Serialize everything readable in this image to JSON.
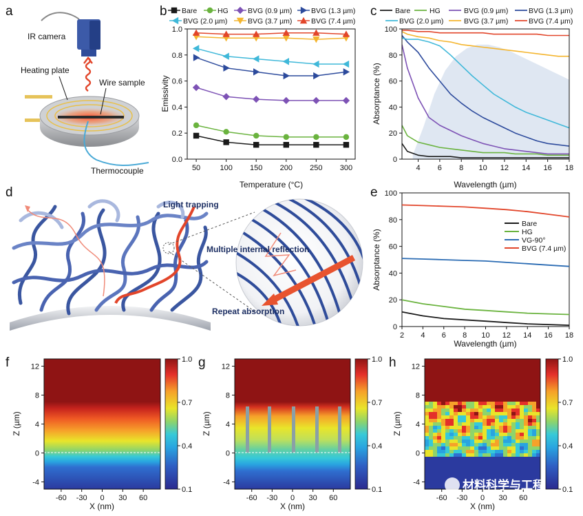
{
  "panels": {
    "a": {
      "letter": "a",
      "ir_camera": "IR camera",
      "heating_plate": "Heating plate",
      "wire_sample": "Wire sample",
      "thermocouple": "Thermocouple"
    },
    "b": {
      "letter": "b"
    },
    "c": {
      "letter": "c"
    },
    "d": {
      "letter": "d",
      "light_trapping": "Light trapping",
      "multiple_internal_reflection": "Multiple internal reflection",
      "repeat_absorption": "Repeat absorption"
    },
    "e": {
      "letter": "e"
    },
    "f": {
      "letter": "f"
    },
    "g": {
      "letter": "g"
    },
    "h": {
      "letter": "h"
    }
  },
  "watermark": "材料科学与工程",
  "colors": {
    "bare": "#1a1a1a",
    "hg": "#6ab33e",
    "bvg09": "#7d52b5",
    "bvg13": "#2c4a9c",
    "bvg20": "#3fb8d9",
    "bvg37": "#f4b52e",
    "bvg74": "#e2452a",
    "vg90": "#2a6bb3"
  },
  "chart_data": [
    {
      "id": "b",
      "type": "line",
      "xlabel": "Temperature (°C)",
      "ylabel": "Emissivity",
      "xlim": [
        35,
        315
      ],
      "ylim": [
        0.0,
        1.0
      ],
      "xticks": [
        50,
        100,
        150,
        200,
        250,
        300
      ],
      "yticks": [
        0.0,
        0.2,
        0.4,
        0.6,
        0.8,
        1.0
      ],
      "ytick_labels": [
        "0.0",
        "0.2",
        "0.4",
        "0.6",
        "0.8",
        "1.0"
      ],
      "x": [
        50,
        100,
        150,
        200,
        250,
        300
      ],
      "series": [
        {
          "name": "Bare",
          "color": "#1a1a1a",
          "marker": "square",
          "values": [
            0.18,
            0.13,
            0.11,
            0.11,
            0.11,
            0.11
          ]
        },
        {
          "name": "HG",
          "color": "#6ab33e",
          "marker": "circle",
          "values": [
            0.26,
            0.21,
            0.18,
            0.17,
            0.17,
            0.17
          ]
        },
        {
          "name": "BVG (0.9 µm)",
          "color": "#7d52b5",
          "marker": "diamond",
          "values": [
            0.55,
            0.48,
            0.46,
            0.45,
            0.45,
            0.45
          ]
        },
        {
          "name": "BVG (1.3 µm)",
          "color": "#2c4a9c",
          "marker": "tri-right",
          "values": [
            0.78,
            0.7,
            0.67,
            0.64,
            0.64,
            0.67
          ]
        },
        {
          "name": "BVG (2.0 µm)",
          "color": "#3fb8d9",
          "marker": "tri-left",
          "values": [
            0.85,
            0.79,
            0.77,
            0.75,
            0.73,
            0.73
          ]
        },
        {
          "name": "BVG (3.7 µm)",
          "color": "#f4b52e",
          "marker": "tri-down",
          "values": [
            0.94,
            0.93,
            0.93,
            0.93,
            0.92,
            0.93
          ]
        },
        {
          "name": "BVG (7.4 µm)",
          "color": "#e2452a",
          "marker": "tri-up",
          "values": [
            0.97,
            0.96,
            0.96,
            0.97,
            0.97,
            0.96
          ]
        }
      ]
    },
    {
      "id": "c",
      "type": "line",
      "xlabel": "Wavelength (µm)",
      "ylabel": "Absorptance (%)",
      "xlim": [
        2.5,
        18
      ],
      "ylim": [
        0,
        100
      ],
      "xticks": [
        4,
        6,
        8,
        10,
        12,
        14,
        16,
        18
      ],
      "yticks": [
        0,
        20,
        40,
        60,
        80,
        100
      ],
      "background": {
        "name": "blackbody (shaded)",
        "color": "#dbe4f1",
        "x": [
          3.5,
          4.5,
          5.5,
          6.5,
          7.5,
          8.5,
          9.5,
          10.5,
          11.5,
          12.5,
          13.5,
          14.5,
          15.5,
          16.5,
          17.5,
          18
        ],
        "values": [
          3,
          25,
          50,
          68,
          79,
          85,
          88,
          88,
          86,
          83,
          79,
          75,
          71,
          67,
          63,
          61
        ]
      },
      "x": [
        2.5,
        3,
        4,
        5,
        6,
        7,
        8,
        9,
        10,
        11,
        12,
        13,
        14,
        15,
        16,
        17,
        18
      ],
      "series": [
        {
          "name": "Bare",
          "color": "#1a1a1a",
          "values": [
            12,
            6,
            3,
            2,
            2,
            2,
            1,
            1,
            1,
            1,
            1,
            1,
            1,
            1,
            1,
            1,
            1
          ]
        },
        {
          "name": "HG",
          "color": "#6ab33e",
          "values": [
            26,
            18,
            13,
            11,
            9,
            8,
            7,
            6,
            5,
            5,
            5,
            4,
            4,
            4,
            3,
            3,
            3
          ]
        },
        {
          "name": "BVG (0.9 µm)",
          "color": "#7d52b5",
          "values": [
            88,
            70,
            47,
            32,
            26,
            22,
            18,
            15,
            12,
            10,
            8,
            7,
            6,
            5,
            4,
            4,
            4
          ]
        },
        {
          "name": "BVG (1.3 µm)",
          "color": "#2c4a9c",
          "values": [
            95,
            90,
            82,
            70,
            60,
            50,
            43,
            37,
            32,
            28,
            24,
            20,
            17,
            14,
            12,
            11,
            10
          ]
        },
        {
          "name": "BVG (2.0 µm)",
          "color": "#3fb8d9",
          "values": [
            93,
            92,
            92,
            90,
            87,
            80,
            72,
            64,
            57,
            50,
            45,
            40,
            36,
            33,
            30,
            27,
            24
          ]
        },
        {
          "name": "BVG (3.7 µm)",
          "color": "#f4b52e",
          "values": [
            98,
            96,
            94,
            93,
            91,
            90,
            88,
            87,
            86,
            85,
            84,
            83,
            82,
            81,
            80,
            79,
            79
          ]
        },
        {
          "name": "BVG (7.4 µm)",
          "color": "#e2452a",
          "values": [
            99,
            99,
            98,
            98,
            97,
            97,
            97,
            97,
            97,
            96,
            96,
            96,
            96,
            96,
            95,
            95,
            95
          ]
        }
      ]
    },
    {
      "id": "e",
      "type": "line",
      "xlabel": "Wavelength (µm)",
      "ylabel": "Absorptance (%)",
      "xlim": [
        2,
        18
      ],
      "ylim": [
        0,
        100
      ],
      "xticks": [
        2,
        4,
        6,
        8,
        10,
        12,
        14,
        16,
        18
      ],
      "yticks": [
        0,
        20,
        40,
        60,
        80,
        100
      ],
      "x": [
        2,
        4,
        6,
        8,
        10,
        12,
        14,
        16,
        18
      ],
      "series": [
        {
          "name": "Bare",
          "color": "#1a1a1a",
          "values": [
            11,
            8,
            6,
            5,
            4,
            3,
            2,
            1.5,
            1
          ]
        },
        {
          "name": "HG",
          "color": "#6ab33e",
          "values": [
            20,
            17,
            15,
            13,
            12,
            11,
            10,
            9.5,
            9
          ]
        },
        {
          "name": "VG-90°",
          "color": "#2a6bb3",
          "values": [
            51,
            50.5,
            50,
            49.5,
            49,
            48,
            47,
            46,
            45
          ]
        },
        {
          "name": "BVG (7.4 µm)",
          "color": "#e2452a",
          "values": [
            91,
            90.5,
            90,
            89.5,
            88.5,
            87.5,
            86,
            84,
            82
          ]
        }
      ]
    },
    {
      "id": "f",
      "type": "heatmap",
      "xlabel": "X (nm)",
      "ylabel": "Z (µm)",
      "xticks": [
        -60,
        -30,
        0,
        30,
        60
      ],
      "yticks": [
        12,
        8,
        4,
        0,
        -4
      ],
      "ylim": [
        -5,
        13
      ],
      "colorbar": {
        "ticks": [
          1.0,
          0.7,
          0.4,
          0.1
        ],
        "labels": [
          "1.0",
          "0.7",
          "0.4",
          "0.1"
        ]
      }
    },
    {
      "id": "g",
      "type": "heatmap",
      "xlabel": "X (nm)",
      "ylabel": "Z (µm)",
      "xticks": [
        -60,
        -30,
        0,
        30,
        60
      ],
      "yticks": [
        12,
        8,
        4,
        0,
        -4
      ],
      "ylim": [
        -5,
        13
      ],
      "colorbar": {
        "ticks": [
          1.0,
          0.7,
          0.4,
          0.1
        ],
        "labels": [
          "1.0",
          "0.7",
          "0.4",
          "0.1"
        ]
      }
    },
    {
      "id": "h",
      "type": "heatmap",
      "xlabel": "X (nm)",
      "ylabel": "Z (µm)",
      "xticks": [
        -60,
        -30,
        0,
        30,
        60
      ],
      "yticks": [
        12,
        8,
        4,
        0,
        -4
      ],
      "ylim": [
        -5,
        13
      ],
      "colorbar": {
        "ticks": [
          1.0,
          0.7,
          0.4,
          0.1
        ],
        "labels": [
          "1.0",
          "0.7",
          "0.4",
          "0.1"
        ]
      }
    }
  ]
}
